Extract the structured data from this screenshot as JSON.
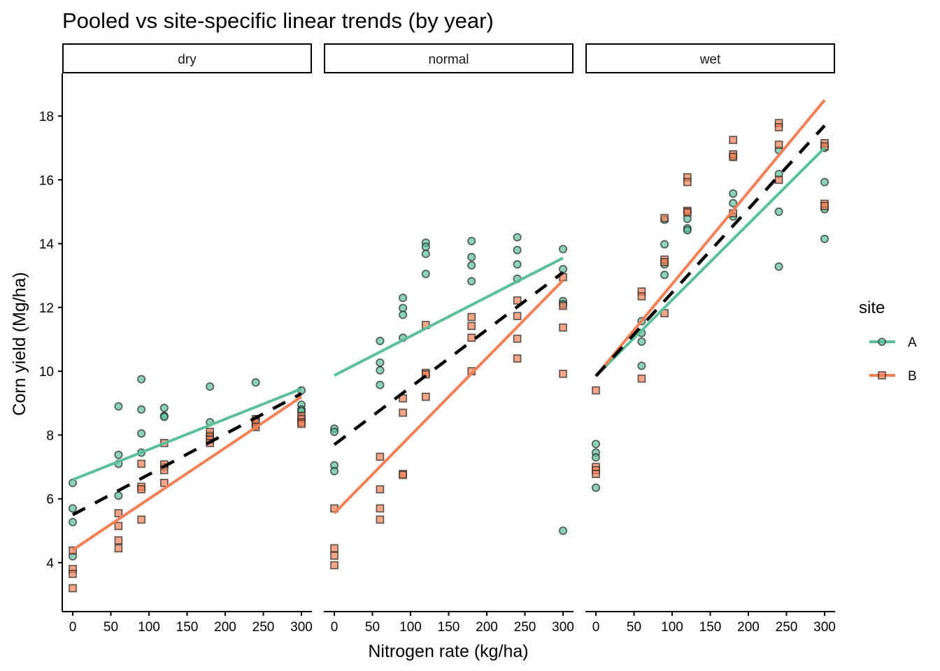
{
  "chart_data": {
    "type": "scatter",
    "title": "Pooled vs site-specific linear trends (by year)",
    "xlabel": "Nitrogen rate (kg/ha)",
    "ylabel": "Corn yield (Mg/ha)",
    "xlim": [
      -15,
      315
    ],
    "ylim": [
      2.7,
      19.3
    ],
    "x_ticks": [
      0,
      50,
      100,
      150,
      200,
      250,
      300
    ],
    "y_ticks": [
      4,
      6,
      8,
      10,
      12,
      14,
      16,
      18
    ],
    "x_tick_labels": [
      "0",
      "50",
      "100",
      "150",
      "200",
      "250",
      "300"
    ],
    "y_tick_labels": [
      "4",
      "6",
      "8",
      "10",
      "12",
      "14",
      "16",
      "18"
    ],
    "grid": false,
    "legend": {
      "title": "site",
      "position": "right",
      "entries": [
        {
          "label": "A",
          "color": "#5bbf97",
          "marker": "circle"
        },
        {
          "label": "B",
          "color": "#f47f55",
          "marker": "square"
        }
      ]
    },
    "colors": {
      "A": "#5bbf97",
      "B": "#f47f55",
      "pooled": "#000000"
    },
    "panels": [
      {
        "label": "dry",
        "points": {
          "A": [
            [
              0,
              6.5
            ],
            [
              0,
              5.7
            ],
            [
              0,
              5.27
            ],
            [
              0,
              4.2
            ],
            [
              60,
              8.9
            ],
            [
              60,
              7.38
            ],
            [
              60,
              7.1
            ],
            [
              60,
              6.1
            ],
            [
              90,
              9.75
            ],
            [
              90,
              8.8
            ],
            [
              90,
              8.05
            ],
            [
              90,
              7.45
            ],
            [
              120,
              8.85
            ],
            [
              120,
              8.6
            ],
            [
              120,
              8.57
            ],
            [
              120,
              7.0
            ],
            [
              180,
              9.52
            ],
            [
              180,
              8.4
            ],
            [
              180,
              8.0
            ],
            [
              240,
              9.65
            ],
            [
              240,
              8.5
            ],
            [
              240,
              8.3
            ],
            [
              300,
              9.4
            ],
            [
              300,
              8.95
            ],
            [
              300,
              8.8
            ],
            [
              300,
              8.75
            ]
          ],
          "B": [
            [
              0,
              4.38
            ],
            [
              0,
              3.8
            ],
            [
              0,
              3.65
            ],
            [
              0,
              3.2
            ],
            [
              60,
              5.55
            ],
            [
              60,
              5.15
            ],
            [
              60,
              4.7
            ],
            [
              60,
              4.45
            ],
            [
              90,
              7.1
            ],
            [
              90,
              6.38
            ],
            [
              90,
              6.3
            ],
            [
              90,
              5.35
            ],
            [
              120,
              7.75
            ],
            [
              120,
              7.08
            ],
            [
              120,
              6.9
            ],
            [
              120,
              6.5
            ],
            [
              180,
              8.1
            ],
            [
              180,
              7.95
            ],
            [
              180,
              7.85
            ],
            [
              180,
              7.75
            ],
            [
              240,
              8.5
            ],
            [
              240,
              8.4
            ],
            [
              240,
              8.25
            ],
            [
              300,
              8.6
            ],
            [
              300,
              8.5
            ],
            [
              300,
              8.4
            ],
            [
              300,
              8.35
            ]
          ]
        },
        "fits": {
          "A": [
            6.6,
            9.45
          ],
          "B": [
            4.4,
            9.2
          ],
          "pooled": [
            5.5,
            9.3
          ]
        }
      },
      {
        "label": "normal",
        "points": {
          "A": [
            [
              0,
              8.2
            ],
            [
              0,
              8.1
            ],
            [
              0,
              7.05
            ],
            [
              0,
              6.87
            ],
            [
              60,
              10.95
            ],
            [
              60,
              10.27
            ],
            [
              60,
              10.03
            ],
            [
              60,
              9.57
            ],
            [
              90,
              12.3
            ],
            [
              90,
              11.98
            ],
            [
              90,
              11.77
            ],
            [
              90,
              11.05
            ],
            [
              120,
              14.03
            ],
            [
              120,
              13.9
            ],
            [
              120,
              13.68
            ],
            [
              120,
              13.05
            ],
            [
              180,
              14.08
            ],
            [
              180,
              13.58
            ],
            [
              180,
              13.32
            ],
            [
              180,
              12.82
            ],
            [
              240,
              14.2
            ],
            [
              240,
              13.8
            ],
            [
              240,
              13.35
            ],
            [
              240,
              12.9
            ],
            [
              300,
              13.83
            ],
            [
              300,
              13.2
            ],
            [
              300,
              12.2
            ],
            [
              300,
              12.1
            ],
            [
              300,
              5.0
            ]
          ],
          "B": [
            [
              0,
              5.7
            ],
            [
              0,
              4.45
            ],
            [
              0,
              4.22
            ],
            [
              0,
              3.92
            ],
            [
              60,
              7.32
            ],
            [
              60,
              6.3
            ],
            [
              60,
              5.7
            ],
            [
              60,
              5.35
            ],
            [
              90,
              9.15
            ],
            [
              90,
              8.7
            ],
            [
              90,
              6.78
            ],
            [
              90,
              6.75
            ],
            [
              120,
              11.45
            ],
            [
              120,
              9.95
            ],
            [
              120,
              9.9
            ],
            [
              120,
              9.2
            ],
            [
              180,
              11.7
            ],
            [
              180,
              11.42
            ],
            [
              180,
              11.05
            ],
            [
              180,
              10.0
            ],
            [
              240,
              12.22
            ],
            [
              240,
              11.73
            ],
            [
              240,
              11.02
            ],
            [
              240,
              10.4
            ],
            [
              300,
              12.95
            ],
            [
              300,
              12.05
            ],
            [
              300,
              11.37
            ],
            [
              300,
              9.92
            ]
          ]
        },
        "fits": {
          "A": [
            9.87,
            13.55
          ],
          "B": [
            5.55,
            12.85
          ],
          "pooled": [
            7.7,
            13.1
          ]
        }
      },
      {
        "label": "wet",
        "points": {
          "A": [
            [
              0,
              7.72
            ],
            [
              0,
              7.45
            ],
            [
              0,
              7.3
            ],
            [
              0,
              6.35
            ],
            [
              60,
              11.57
            ],
            [
              60,
              11.2
            ],
            [
              60,
              10.93
            ],
            [
              60,
              10.17
            ],
            [
              90,
              14.75
            ],
            [
              90,
              13.98
            ],
            [
              90,
              13.35
            ],
            [
              90,
              13.02
            ],
            [
              120,
              15.0
            ],
            [
              120,
              14.78
            ],
            [
              120,
              14.48
            ],
            [
              120,
              14.42
            ],
            [
              180,
              16.72
            ],
            [
              180,
              15.57
            ],
            [
              180,
              15.27
            ],
            [
              180,
              14.85
            ],
            [
              240,
              16.93
            ],
            [
              240,
              16.18
            ],
            [
              240,
              15.0
            ],
            [
              240,
              13.28
            ],
            [
              300,
              17.0
            ],
            [
              300,
              15.93
            ],
            [
              300,
              15.08
            ],
            [
              300,
              14.15
            ]
          ],
          "B": [
            [
              0,
              9.4
            ],
            [
              0,
              7.0
            ],
            [
              0,
              6.9
            ],
            [
              0,
              6.78
            ],
            [
              60,
              12.5
            ],
            [
              60,
              12.35
            ],
            [
              60,
              9.77
            ],
            [
              90,
              14.8
            ],
            [
              90,
              13.5
            ],
            [
              90,
              13.42
            ],
            [
              90,
              11.82
            ],
            [
              120,
              16.08
            ],
            [
              120,
              15.93
            ],
            [
              120,
              15.03
            ],
            [
              120,
              14.98
            ],
            [
              180,
              17.25
            ],
            [
              180,
              16.8
            ],
            [
              180,
              16.72
            ],
            [
              180,
              14.95
            ],
            [
              240,
              17.78
            ],
            [
              240,
              17.65
            ],
            [
              240,
              17.1
            ],
            [
              240,
              16.0
            ],
            [
              300,
              17.15
            ],
            [
              300,
              17.05
            ],
            [
              300,
              15.25
            ],
            [
              300,
              15.18
            ]
          ]
        },
        "fits": {
          "A": [
            9.85,
            17.0
          ],
          "B": [
            9.85,
            18.5
          ],
          "pooled": [
            9.85,
            17.7
          ]
        }
      }
    ]
  }
}
